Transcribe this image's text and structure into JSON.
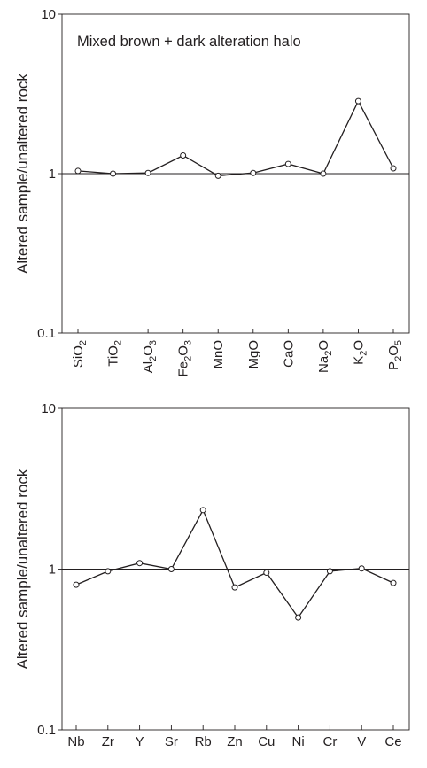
{
  "chart_data": [
    {
      "type": "line",
      "title": "Mixed brown + dark alteration halo",
      "ylabel": "Altered sample/unaltered rock",
      "yscale": "log",
      "ylim": [
        0.1,
        10
      ],
      "y_ticks": [
        "10",
        "1",
        "0.1"
      ],
      "reference_line": 1,
      "grid": false,
      "categories": [
        {
          "base": "SiO",
          "sub": [
            "2"
          ]
        },
        {
          "base": "TiO",
          "sub": [
            "2"
          ]
        },
        {
          "base": "Al",
          "sub": [
            "2"
          ],
          "mid": "O",
          "sub2": [
            "3"
          ]
        },
        {
          "base": "Fe",
          "sub": [
            "2"
          ],
          "mid": "O",
          "sub2": [
            "3"
          ]
        },
        {
          "base": "MnO"
        },
        {
          "base": "MgO"
        },
        {
          "base": "CaO"
        },
        {
          "base": "Na",
          "sub": [
            "2"
          ],
          "mid": "O"
        },
        {
          "base": "K",
          "sub": [
            "2"
          ],
          "mid": "O"
        },
        {
          "base": "P",
          "sub": [
            "2"
          ],
          "mid": "O",
          "sub2": [
            "5"
          ]
        }
      ],
      "values": [
        1.04,
        1.0,
        1.01,
        1.3,
        0.97,
        1.01,
        1.15,
        1.0,
        2.85,
        1.08
      ]
    },
    {
      "type": "line",
      "title": "",
      "ylabel": "Altered sample/unaltered rock",
      "yscale": "log",
      "ylim": [
        0.1,
        10
      ],
      "y_ticks": [
        "10",
        "1",
        "0.1"
      ],
      "reference_line": 1,
      "grid": false,
      "categories": [
        {
          "base": "Nb"
        },
        {
          "base": "Zr"
        },
        {
          "base": "Y"
        },
        {
          "base": "Sr"
        },
        {
          "base": "Rb"
        },
        {
          "base": "Zn"
        },
        {
          "base": "Cu"
        },
        {
          "base": "Ni"
        },
        {
          "base": "Cr"
        },
        {
          "base": "V"
        },
        {
          "base": "Ce"
        }
      ],
      "values": [
        0.8,
        0.97,
        1.09,
        1.0,
        2.33,
        0.77,
        0.95,
        0.5,
        0.97,
        1.01,
        0.82
      ]
    }
  ],
  "colors": {
    "ink": "#231f20",
    "marker_fill": "#ffffff"
  }
}
